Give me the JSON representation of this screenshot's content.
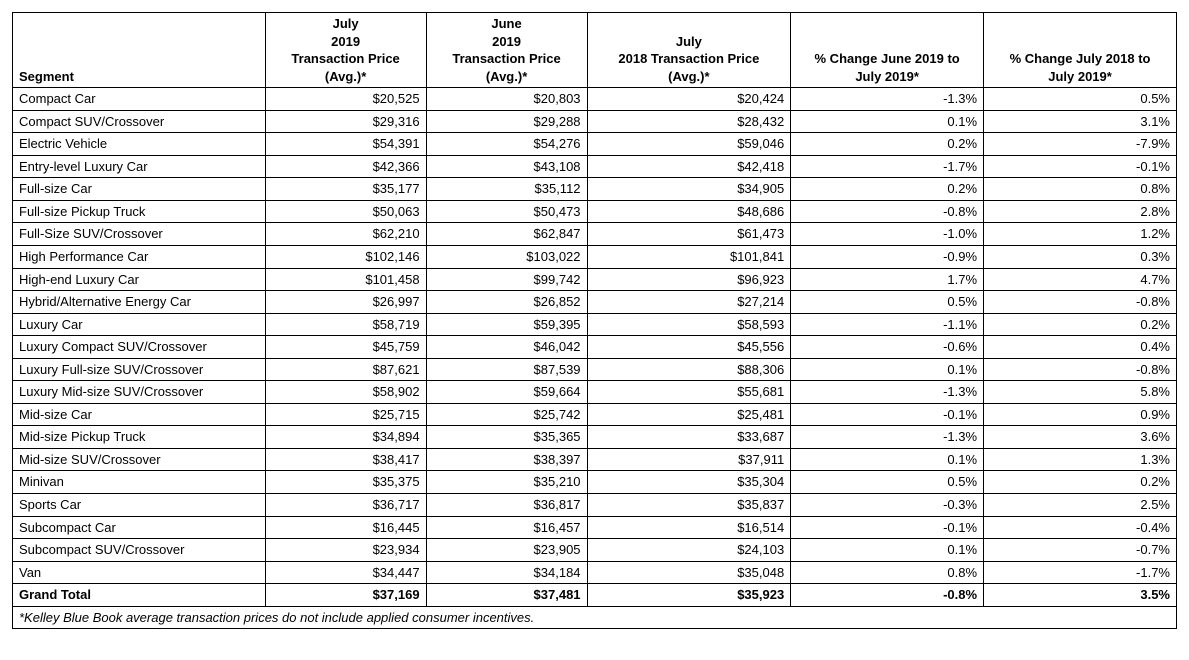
{
  "table": {
    "columns": [
      {
        "key": "segment",
        "header": "Segment",
        "align": "left"
      },
      {
        "key": "jul2019",
        "header": "July\n2019\nTransaction Price\n(Avg.)*",
        "align": "right"
      },
      {
        "key": "jun2019",
        "header": "June\n2019\nTransaction Price\n(Avg.)*",
        "align": "right"
      },
      {
        "key": "jul2018",
        "header": "July\n2018 Transaction Price\n(Avg.)*",
        "align": "right"
      },
      {
        "key": "mom",
        "header": "% Change June 2019 to\nJuly 2019*",
        "align": "right"
      },
      {
        "key": "yoy",
        "header": "% Change July 2018 to\nJuly 2019*",
        "align": "right"
      }
    ],
    "rows": [
      {
        "segment": "Compact Car",
        "jul2019": "$20,525",
        "jun2019": "$20,803",
        "jul2018": "$20,424",
        "mom": "-1.3%",
        "yoy": "0.5%"
      },
      {
        "segment": "Compact SUV/Crossover",
        "jul2019": "$29,316",
        "jun2019": "$29,288",
        "jul2018": "$28,432",
        "mom": "0.1%",
        "yoy": "3.1%"
      },
      {
        "segment": "Electric Vehicle",
        "jul2019": "$54,391",
        "jun2019": "$54,276",
        "jul2018": "$59,046",
        "mom": "0.2%",
        "yoy": "-7.9%"
      },
      {
        "segment": "Entry-level Luxury Car",
        "jul2019": "$42,366",
        "jun2019": "$43,108",
        "jul2018": "$42,418",
        "mom": "-1.7%",
        "yoy": "-0.1%"
      },
      {
        "segment": "Full-size Car",
        "jul2019": "$35,177",
        "jun2019": "$35,112",
        "jul2018": "$34,905",
        "mom": "0.2%",
        "yoy": "0.8%"
      },
      {
        "segment": "Full-size Pickup Truck",
        "jul2019": "$50,063",
        "jun2019": "$50,473",
        "jul2018": "$48,686",
        "mom": "-0.8%",
        "yoy": "2.8%"
      },
      {
        "segment": "Full-Size SUV/Crossover",
        "jul2019": "$62,210",
        "jun2019": "$62,847",
        "jul2018": "$61,473",
        "mom": "-1.0%",
        "yoy": "1.2%"
      },
      {
        "segment": "High Performance Car",
        "jul2019": "$102,146",
        "jun2019": "$103,022",
        "jul2018": "$101,841",
        "mom": "-0.9%",
        "yoy": "0.3%"
      },
      {
        "segment": "High-end Luxury Car",
        "jul2019": "$101,458",
        "jun2019": "$99,742",
        "jul2018": "$96,923",
        "mom": "1.7%",
        "yoy": "4.7%"
      },
      {
        "segment": "Hybrid/Alternative Energy Car",
        "jul2019": "$26,997",
        "jun2019": "$26,852",
        "jul2018": "$27,214",
        "mom": "0.5%",
        "yoy": "-0.8%"
      },
      {
        "segment": "Luxury Car",
        "jul2019": "$58,719",
        "jun2019": "$59,395",
        "jul2018": "$58,593",
        "mom": "-1.1%",
        "yoy": "0.2%"
      },
      {
        "segment": "Luxury Compact SUV/Crossover",
        "jul2019": "$45,759",
        "jun2019": "$46,042",
        "jul2018": "$45,556",
        "mom": "-0.6%",
        "yoy": "0.4%"
      },
      {
        "segment": "Luxury Full-size SUV/Crossover",
        "jul2019": "$87,621",
        "jun2019": "$87,539",
        "jul2018": "$88,306",
        "mom": "0.1%",
        "yoy": "-0.8%"
      },
      {
        "segment": "Luxury Mid-size SUV/Crossover",
        "jul2019": "$58,902",
        "jun2019": "$59,664",
        "jul2018": "$55,681",
        "mom": "-1.3%",
        "yoy": "5.8%"
      },
      {
        "segment": "Mid-size Car",
        "jul2019": "$25,715",
        "jun2019": "$25,742",
        "jul2018": "$25,481",
        "mom": "-0.1%",
        "yoy": "0.9%"
      },
      {
        "segment": "Mid-size Pickup Truck",
        "jul2019": "$34,894",
        "jun2019": "$35,365",
        "jul2018": "$33,687",
        "mom": "-1.3%",
        "yoy": "3.6%"
      },
      {
        "segment": "Mid-size SUV/Crossover",
        "jul2019": "$38,417",
        "jun2019": "$38,397",
        "jul2018": "$37,911",
        "mom": "0.1%",
        "yoy": "1.3%"
      },
      {
        "segment": "Minivan",
        "jul2019": "$35,375",
        "jun2019": "$35,210",
        "jul2018": "$35,304",
        "mom": "0.5%",
        "yoy": "0.2%"
      },
      {
        "segment": "Sports Car",
        "jul2019": "$36,717",
        "jun2019": "$36,817",
        "jul2018": "$35,837",
        "mom": "-0.3%",
        "yoy": "2.5%"
      },
      {
        "segment": "Subcompact Car",
        "jul2019": "$16,445",
        "jun2019": "$16,457",
        "jul2018": "$16,514",
        "mom": "-0.1%",
        "yoy": "-0.4%"
      },
      {
        "segment": "Subcompact SUV/Crossover",
        "jul2019": "$23,934",
        "jun2019": "$23,905",
        "jul2018": "$24,103",
        "mom": "0.1%",
        "yoy": "-0.7%"
      },
      {
        "segment": "Van",
        "jul2019": "$34,447",
        "jun2019": "$34,184",
        "jul2018": "$35,048",
        "mom": "0.8%",
        "yoy": "-1.7%"
      }
    ],
    "total": {
      "segment": "Grand Total",
      "jul2019": "$37,169",
      "jun2019": "$37,481",
      "jul2018": "$35,923",
      "mom": "-0.8%",
      "yoy": "3.5%"
    },
    "footnote": "*Kelley Blue Book average transaction prices do not include applied consumer incentives."
  }
}
